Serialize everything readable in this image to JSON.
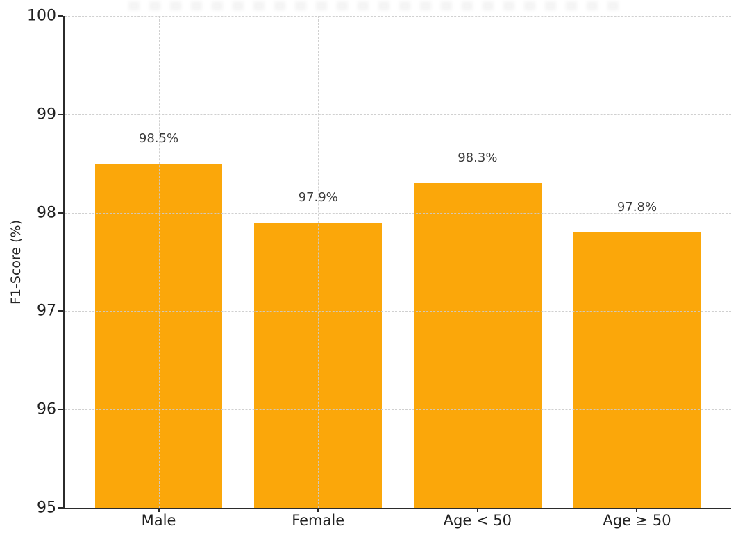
{
  "chart_data": {
    "type": "bar",
    "categories": [
      "Male",
      "Female",
      "Age < 50",
      "Age ≥ 50"
    ],
    "values": [
      98.5,
      97.9,
      98.3,
      97.8
    ],
    "value_labels": [
      "98.5%",
      "97.9%",
      "98.3%",
      "97.8%"
    ],
    "title": "",
    "xlabel": "",
    "ylabel": "F1-Score (%)",
    "ylim": [
      95,
      100
    ],
    "y_ticks": [
      95,
      96,
      97,
      98,
      99,
      100
    ],
    "grid": "dashed light-gray horizontal lines at integer ticks and vertical lines at category centers, drawn above the bars",
    "legend": "none",
    "bar_color": "#FBA70A",
    "bar_width_fraction": 0.8,
    "xlim_units": [
      -0.59,
      3.59
    ],
    "value_label_color": "#3c3c3c",
    "tick_label_color": "#1f1f1f",
    "axis_color": "#2b2b2b",
    "background_color": "#ffffff",
    "top_edge_note": "faint illegible remnant of cropped title text at very top edge"
  }
}
